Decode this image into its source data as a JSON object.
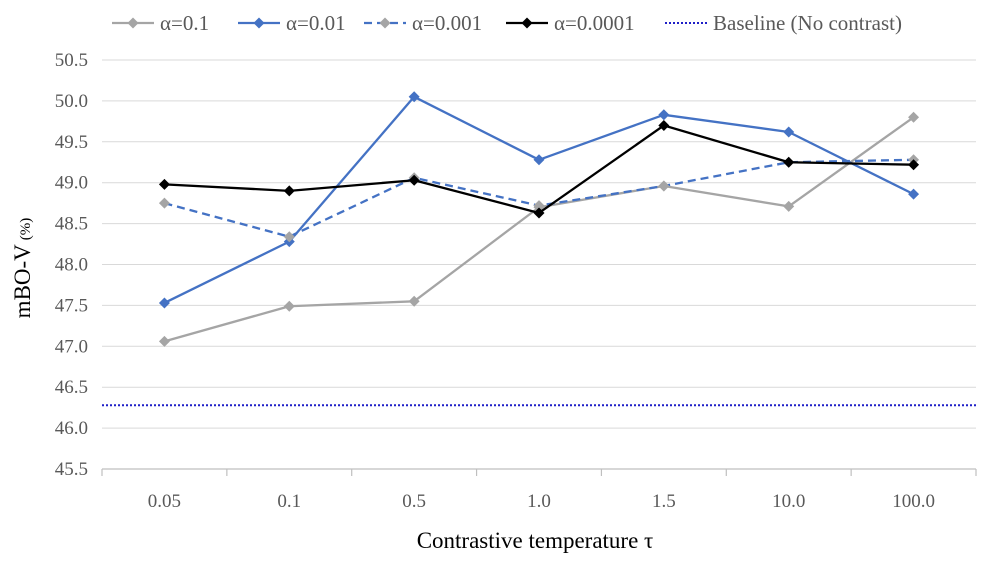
{
  "chart_data": {
    "type": "line",
    "xlabel": "Contrastive temperature τ",
    "ylabel": "mBO-V",
    "ylabel_unit": "(%)",
    "categories": [
      "0.05",
      "0.1",
      "0.5",
      "1.0",
      "1.5",
      "10.0",
      "100.0"
    ],
    "ylim": [
      45.5,
      50.5
    ],
    "yticks": [
      "45.5",
      "46.0",
      "46.5",
      "47.0",
      "47.5",
      "48.0",
      "48.5",
      "49.0",
      "49.5",
      "50.0",
      "50.5"
    ],
    "grid": "horizontal",
    "legend_position": "top",
    "series": [
      {
        "name": "α=0.1",
        "color": "#a5a5a5",
        "dash": "solid",
        "marker": "diamond",
        "values": [
          47.06,
          47.49,
          47.55,
          48.7,
          48.96,
          48.71,
          49.8
        ]
      },
      {
        "name": "α=0.01",
        "color": "#4472c4",
        "dash": "solid",
        "marker": "diamond",
        "values": [
          47.53,
          48.28,
          50.05,
          49.28,
          49.83,
          49.62,
          48.86
        ]
      },
      {
        "name": "α=0.001",
        "color": "#4472c4",
        "dash": "dashed",
        "marker": "diamond",
        "marker_color": "#a5a5a5",
        "values": [
          48.75,
          48.34,
          49.06,
          48.72,
          48.96,
          49.25,
          49.28
        ]
      },
      {
        "name": "α=0.0001",
        "color": "#000000",
        "dash": "solid",
        "marker": "diamond",
        "values": [
          48.98,
          48.9,
          49.03,
          48.63,
          49.7,
          49.25,
          49.22
        ]
      }
    ],
    "baseline": {
      "name": "Baseline (No contrast)",
      "value": 46.28,
      "color": "#1f1fc8",
      "dash": "dotted"
    }
  }
}
